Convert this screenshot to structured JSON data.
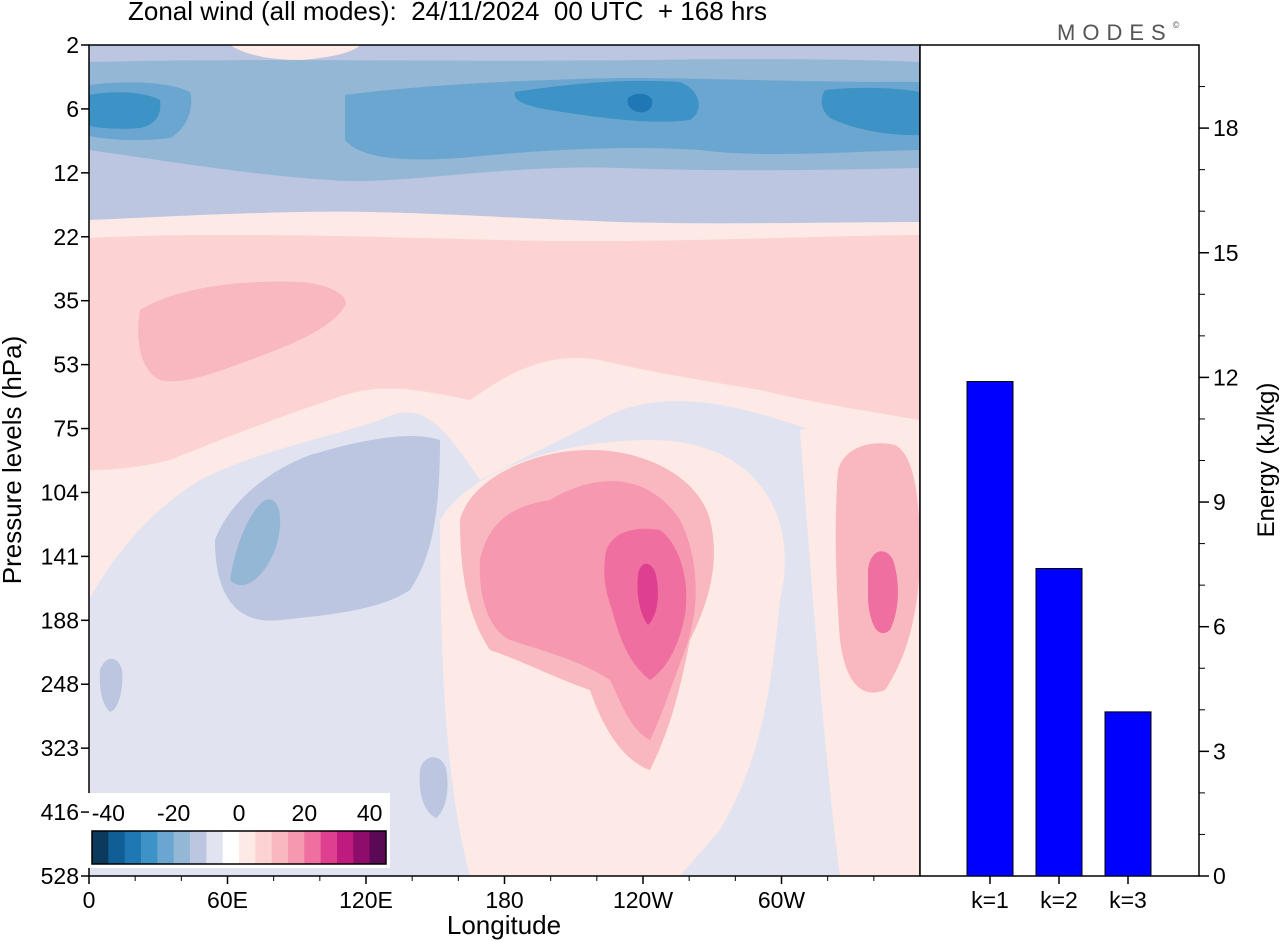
{
  "title": "Zonal wind (all modes):  24/11/2024  00 UTC  + 168 hrs",
  "brand": "MODES",
  "brand_mark": "©",
  "chart_data": [
    {
      "type": "heatmap",
      "title": "Zonal wind (all modes):  24/11/2024  00 UTC  + 168 hrs",
      "xlabel": "Longitude",
      "ylabel": "Pressure levels (hPa)",
      "x_ticks": [
        "0",
        "60E",
        "120E",
        "180",
        "120W",
        "60W"
      ],
      "x_values": [
        0,
        60,
        120,
        180,
        240,
        300
      ],
      "xlim": [
        0,
        360
      ],
      "y_levels": [
        "2",
        "6",
        "12",
        "22",
        "35",
        "53",
        "75",
        "104",
        "141",
        "188",
        "248",
        "323",
        "416",
        "528"
      ],
      "colorbar": {
        "ticks": [
          "-40",
          "-20",
          "0",
          "20",
          "40"
        ],
        "tick_values": [
          -40,
          -20,
          0,
          20,
          40
        ],
        "range": [
          -45,
          45
        ],
        "colors": [
          "#0b3a5c",
          "#0f5e95",
          "#1f78b4",
          "#3d92c6",
          "#6aa6d0",
          "#94b7d6",
          "#bcc6e0",
          "#e1e4f0",
          "#ffffff",
          "#fde9e6",
          "#fcd3d2",
          "#f9b7bf",
          "#f598b0",
          "#ee6fa0",
          "#de3f8e",
          "#bf1a7e",
          "#8e0c6a",
          "#5a0a55"
        ]
      },
      "fields": [
        {
          "value": 10,
          "color": "#fde9e6",
          "region": "middle atmosphere 22-104 hPa"
        },
        {
          "value": 20,
          "color": "#f9b7bf",
          "region": "30E-100E near 35-53 hPa"
        },
        {
          "value": -10,
          "color": "#94b7d6",
          "region": "upper band 2-12 hPa"
        },
        {
          "value": -25,
          "color": "#3d92c6",
          "region": "core 6 hPa"
        },
        {
          "value": 35,
          "color": "#de3f8e",
          "region": "jet core near 120W 141-188 hPa"
        },
        {
          "value": 30,
          "color": "#ee6fa0",
          "region": "jet near 30W 141-188 hPa"
        },
        {
          "value": -10,
          "color": "#bcc6e0",
          "region": "40E-110E 104-188 hPa"
        }
      ]
    },
    {
      "type": "bar",
      "categories": [
        "k=1",
        "k=2",
        "k=3"
      ],
      "values": [
        11.9,
        7.4,
        3.95
      ],
      "ylabel": "Energy (kJ/kg)",
      "ylim": [
        0,
        20
      ],
      "y_ticks": [
        0,
        3,
        6,
        9,
        12,
        15,
        18
      ],
      "color": "#0000ff"
    }
  ]
}
